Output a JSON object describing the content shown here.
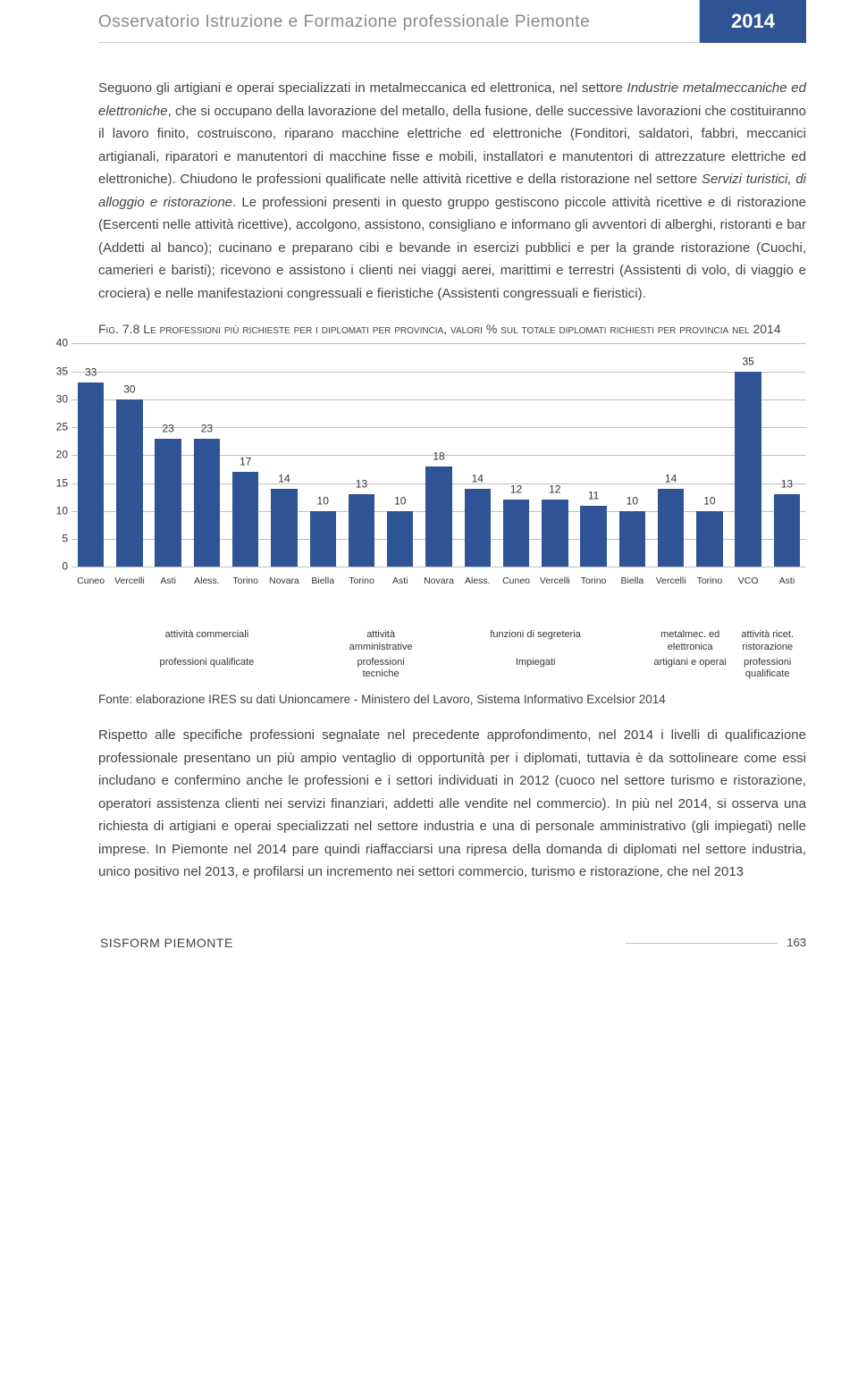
{
  "header": {
    "title": "Osservatorio Istruzione e Formazione professionale Piemonte",
    "year": "2014"
  },
  "para1_plain_1": "Seguono gli artigiani e operai specializzati in metalmeccanica ed elettronica, nel settore ",
  "para1_italic_1": "Industrie metalmeccaniche ed elettroniche",
  "para1_plain_2": ", che si occupano della lavorazione del metallo, della fusione, delle successive lavorazioni che costituiranno il lavoro finito, costruiscono, riparano macchine elettriche ed elettroniche (Fonditori, saldatori, fabbri, meccanici artigianali, riparatori e manutentori di macchine fisse e mobili, installatori e manutentori di attrezzature elettriche ed elettroniche). Chiudono le professioni qualificate nelle attività ricettive e della ristorazione nel settore ",
  "para1_italic_2": "Servizi turistici, di alloggio e ristorazione",
  "para1_plain_3": ". Le professioni presenti in questo gruppo gestiscono piccole attività ricettive e di ristorazione (Esercenti nelle attività ricettive), accolgono, assistono, consigliano e informano gli avventori di alberghi, ristoranti e bar (Addetti al banco); cucinano e preparano cibi e bevande in esercizi pubblici e per la grande ristorazione (Cuochi, camerieri e baristi); ricevono e assistono i clienti nei viaggi aerei, marittimi e terrestri (Assistenti di volo, di viaggio e crociera) e nelle manifestazioni congressuali e fieristiche (Assistenti congressuali e fieristici).",
  "fig_title_sc1": "Fig. 7.8 Le professioni più richieste per i diplomati per provincia, valori % sul totale diplomati richiesti per provincia nel 2014",
  "chart": {
    "ymax": 40,
    "ytick_step": 5,
    "bar_color": "#2f5496",
    "grid_color": "#bfbfbf",
    "bars": [
      {
        "label": "Cuneo",
        "value": 33
      },
      {
        "label": "Vercelli",
        "value": 30
      },
      {
        "label": "Asti",
        "value": 23
      },
      {
        "label": "Aless.",
        "value": 23
      },
      {
        "label": "Torino",
        "value": 17
      },
      {
        "label": "Novara",
        "value": 14
      },
      {
        "label": "Biella",
        "value": 10
      },
      {
        "label": "Torino",
        "value": 13
      },
      {
        "label": "Asti",
        "value": 10
      },
      {
        "label": "Novara",
        "value": 18
      },
      {
        "label": "Aless.",
        "value": 14
      },
      {
        "label": "Cuneo",
        "value": 12
      },
      {
        "label": "Vercelli",
        "value": 12
      },
      {
        "label": "Torino",
        "value": 11
      },
      {
        "label": "Biella",
        "value": 10
      },
      {
        "label": "Vercelli",
        "value": 14
      },
      {
        "label": "Torino",
        "value": 10
      },
      {
        "label": "VCO",
        "value": 35
      },
      {
        "label": "Asti",
        "value": 13
      }
    ],
    "group_row1": [
      {
        "label": "attività commerciali",
        "span": 7
      },
      {
        "label": "attività amministrative",
        "span": 2
      },
      {
        "label": "funzioni di segreteria",
        "span": 6
      },
      {
        "label": "metalmec. ed elettronica",
        "span": 2
      },
      {
        "label": "attività ricet. ristorazione",
        "span": 2
      }
    ],
    "group_row2": [
      {
        "label": "professioni qualificate",
        "span": 7
      },
      {
        "label": "professioni tecniche",
        "span": 2
      },
      {
        "label": "Impiegati",
        "span": 6
      },
      {
        "label": "artigiani e operai",
        "span": 2
      },
      {
        "label": "professioni qualificate",
        "span": 2
      }
    ]
  },
  "source": "Fonte: elaborazione IRES su dati Unioncamere - Ministero del Lavoro, Sistema Informativo Excelsior 2014",
  "para2": "Rispetto alle specifiche professioni segnalate nel precedente approfondimento, nel 2014 i livelli di qualificazione professionale presentano un più ampio ventaglio di opportunità per i diplomati, tuttavia è da sottolineare come essi includano e confermino anche le professioni e i settori individuati in 2012 (cuoco nel settore turismo e ristorazione, operatori assistenza clienti nei servizi finanziari, addetti alle vendite nel commercio). In più nel 2014, si osserva una richiesta di artigiani e operai specializzati nel settore industria e una di personale amministrativo (gli impiegati) nelle imprese. In Piemonte nel 2014 pare quindi riaffacciarsi una ripresa della domanda di diplomati nel settore industria, unico positivo nel 2013, e profilarsi un incremento nei settori commercio, turismo e ristorazione, che nel 2013",
  "footer": {
    "left": "SISFORM PIEMONTE",
    "page": "163"
  }
}
